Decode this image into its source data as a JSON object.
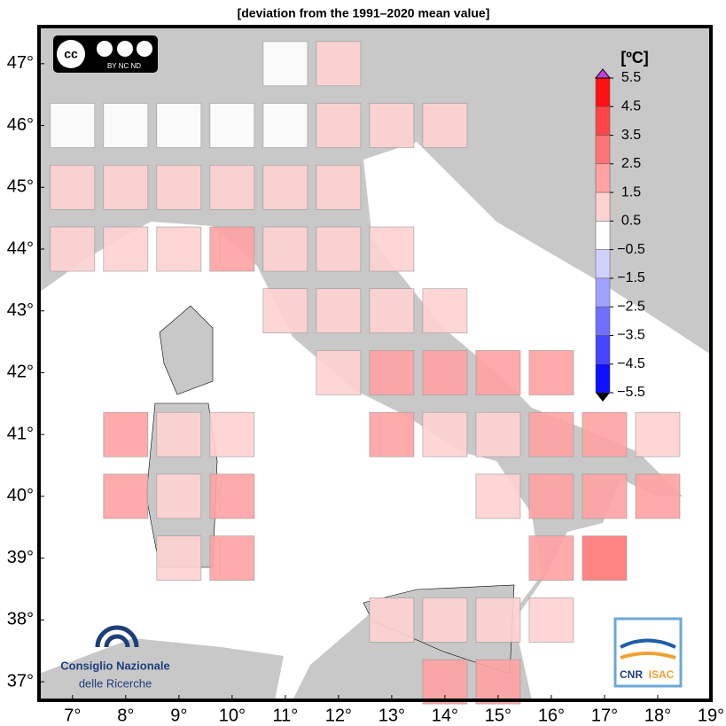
{
  "map": {
    "title": "[deviation from the 1991–2020 mean value]",
    "xticks": [
      {
        "value": 7,
        "label": "7°"
      },
      {
        "value": 8,
        "label": "8°"
      },
      {
        "value": 9,
        "label": "9°"
      },
      {
        "value": 10,
        "label": "10°"
      },
      {
        "value": 11,
        "label": "11°"
      },
      {
        "value": 12,
        "label": "12°"
      },
      {
        "value": 13,
        "label": "13°"
      },
      {
        "value": 14,
        "label": "14°"
      },
      {
        "value": 15,
        "label": "15°"
      },
      {
        "value": 16,
        "label": "16°"
      },
      {
        "value": 17,
        "label": "17°"
      },
      {
        "value": 18,
        "label": "18°"
      },
      {
        "value": 19,
        "label": "19°"
      }
    ],
    "yticks": [
      {
        "value": 47,
        "label": "47°"
      },
      {
        "value": 46,
        "label": "46°"
      },
      {
        "value": 45,
        "label": "45°"
      },
      {
        "value": 44,
        "label": "44°"
      },
      {
        "value": 43,
        "label": "43°"
      },
      {
        "value": 42,
        "label": "42°"
      },
      {
        "value": 41,
        "label": "41°"
      },
      {
        "value": 40,
        "label": "40°"
      },
      {
        "value": 39,
        "label": "39°"
      },
      {
        "value": 38,
        "label": "38°"
      },
      {
        "value": 37,
        "label": "37°"
      }
    ],
    "xlim": [
      6.37,
      19
    ],
    "ylim": [
      36.7,
      47.6
    ],
    "colorbar": {
      "title": "[ºC]",
      "levels": [
        {
          "value": 5.5,
          "label": "5.5"
        },
        {
          "value": 4.5,
          "label": "4.5"
        },
        {
          "value": 3.5,
          "label": "3.5"
        },
        {
          "value": 2.5,
          "label": "2.5"
        },
        {
          "value": 1.5,
          "label": "1.5"
        },
        {
          "value": 0.5,
          "label": "0.5"
        },
        {
          "value": -0.5,
          "label": "−0.5"
        },
        {
          "value": -1.5,
          "label": "−1.5"
        },
        {
          "value": -2.5,
          "label": "−2.5"
        },
        {
          "value": -3.5,
          "label": "−3.5"
        },
        {
          "value": -4.5,
          "label": "−4.5"
        },
        {
          "value": -5.5,
          "label": "−5.5"
        }
      ],
      "colors": [
        "#ff1010",
        "#ff4545",
        "#ff7575",
        "#ffa2a2",
        "#ffd2d2",
        "#ffffff",
        "#d0d0ff",
        "#a0a0ff",
        "#7070ff",
        "#4545ff",
        "#1010ff"
      ]
    },
    "cells": [
      {
        "lon": 11,
        "lat": 47,
        "value": 0
      },
      {
        "lon": 12,
        "lat": 47,
        "value": 1
      },
      {
        "lon": 7,
        "lat": 46,
        "value": 0
      },
      {
        "lon": 8,
        "lat": 46,
        "value": 0
      },
      {
        "lon": 9,
        "lat": 46,
        "value": 0
      },
      {
        "lon": 10,
        "lat": 46,
        "value": 0
      },
      {
        "lon": 11,
        "lat": 46,
        "value": 0
      },
      {
        "lon": 12,
        "lat": 46,
        "value": 1
      },
      {
        "lon": 13,
        "lat": 46,
        "value": 1
      },
      {
        "lon": 14,
        "lat": 46,
        "value": 1
      },
      {
        "lon": 7,
        "lat": 45,
        "value": 1
      },
      {
        "lon": 8,
        "lat": 45,
        "value": 1
      },
      {
        "lon": 9,
        "lat": 45,
        "value": 1
      },
      {
        "lon": 10,
        "lat": 45,
        "value": 1
      },
      {
        "lon": 11,
        "lat": 45,
        "value": 1
      },
      {
        "lon": 12,
        "lat": 45,
        "value": 1
      },
      {
        "lon": 7,
        "lat": 44,
        "value": 1
      },
      {
        "lon": 8,
        "lat": 44,
        "value": 1
      },
      {
        "lon": 9,
        "lat": 44,
        "value": 1
      },
      {
        "lon": 10,
        "lat": 44,
        "value": 2
      },
      {
        "lon": 11,
        "lat": 44,
        "value": 1
      },
      {
        "lon": 12,
        "lat": 44,
        "value": 1
      },
      {
        "lon": 13,
        "lat": 44,
        "value": 1
      },
      {
        "lon": 11,
        "lat": 43,
        "value": 1
      },
      {
        "lon": 12,
        "lat": 43,
        "value": 1
      },
      {
        "lon": 13,
        "lat": 43,
        "value": 1
      },
      {
        "lon": 14,
        "lat": 43,
        "value": 1
      },
      {
        "lon": 12,
        "lat": 42,
        "value": 1
      },
      {
        "lon": 13,
        "lat": 42,
        "value": 2
      },
      {
        "lon": 14,
        "lat": 42,
        "value": 2
      },
      {
        "lon": 15,
        "lat": 42,
        "value": 2
      },
      {
        "lon": 16,
        "lat": 42,
        "value": 2
      },
      {
        "lon": 8,
        "lat": 41,
        "value": 2
      },
      {
        "lon": 9,
        "lat": 41,
        "value": 1
      },
      {
        "lon": 10,
        "lat": 41,
        "value": 1
      },
      {
        "lon": 13,
        "lat": 41,
        "value": 2
      },
      {
        "lon": 14,
        "lat": 41,
        "value": 1
      },
      {
        "lon": 15,
        "lat": 41,
        "value": 1
      },
      {
        "lon": 16,
        "lat": 41,
        "value": 2
      },
      {
        "lon": 17,
        "lat": 41,
        "value": 2
      },
      {
        "lon": 18,
        "lat": 41,
        "value": 1
      },
      {
        "lon": 8,
        "lat": 40,
        "value": 2
      },
      {
        "lon": 9,
        "lat": 40,
        "value": 1
      },
      {
        "lon": 10,
        "lat": 40,
        "value": 2
      },
      {
        "lon": 15,
        "lat": 40,
        "value": 1
      },
      {
        "lon": 16,
        "lat": 40,
        "value": 2
      },
      {
        "lon": 17,
        "lat": 40,
        "value": 2
      },
      {
        "lon": 18,
        "lat": 40,
        "value": 2
      },
      {
        "lon": 9,
        "lat": 39,
        "value": 1
      },
      {
        "lon": 10,
        "lat": 39,
        "value": 2
      },
      {
        "lon": 16,
        "lat": 39,
        "value": 2
      },
      {
        "lon": 17,
        "lat": 39,
        "value": 3
      },
      {
        "lon": 13,
        "lat": 38,
        "value": 1
      },
      {
        "lon": 14,
        "lat": 38,
        "value": 1
      },
      {
        "lon": 15,
        "lat": 38,
        "value": 1
      },
      {
        "lon": 16,
        "lat": 38,
        "value": 1
      },
      {
        "lon": 14,
        "lat": 37,
        "value": 2
      },
      {
        "lon": 15,
        "lat": 37,
        "value": 2
      }
    ],
    "logos": {
      "cc": "cc",
      "cc_terms": "BY  NC  ND",
      "cnr_line1": "Consiglio Nazionale",
      "cnr_line2": "delle Ricerche",
      "isac_cnr": "CNR",
      "isac": "ISAC"
    }
  }
}
